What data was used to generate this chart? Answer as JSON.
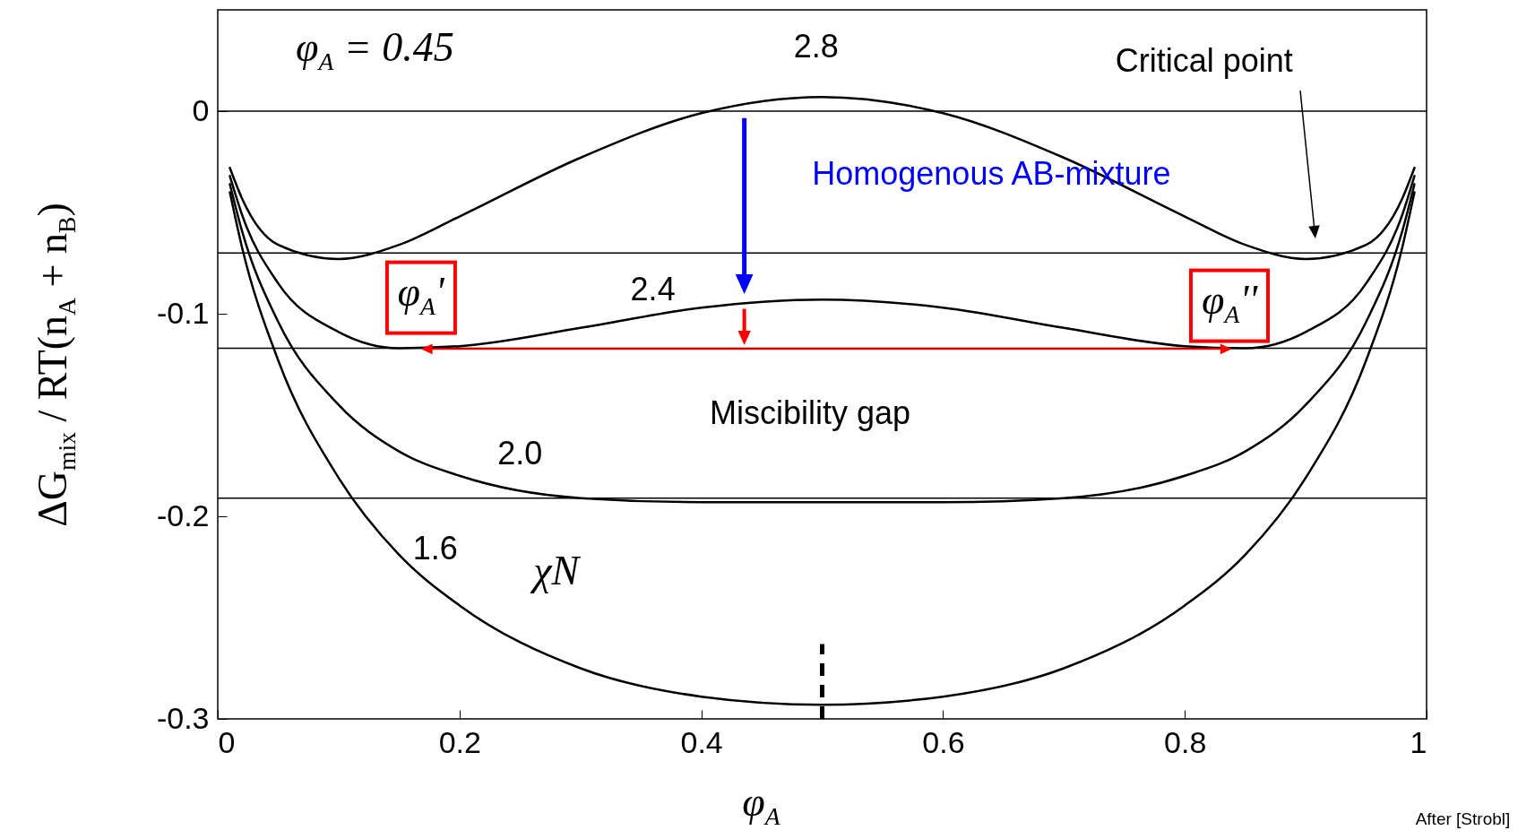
{
  "chart_data": {
    "type": "line",
    "xlabel": "φ$_{A}$",
    "ylabel": "ΔG$_{mix}$ / RT(n$_{A}$ + n$_{B}$)",
    "x": [
      0.01,
      0.02,
      0.05,
      0.1,
      0.15,
      0.2,
      0.3,
      0.4,
      0.5,
      0.6,
      0.7,
      0.8,
      0.85,
      0.9,
      0.95,
      0.98,
      0.99
    ],
    "series": [
      {
        "name": "2.8",
        "color": "#000000",
        "values": [
          -0.028,
          -0.043,
          -0.066,
          -0.073,
          -0.066,
          -0.052,
          -0.023,
          -0.001,
          0.007,
          -0.001,
          -0.023,
          -0.052,
          -0.066,
          -0.073,
          -0.066,
          -0.043,
          -0.028
        ]
      },
      {
        "name": "2.4",
        "color": "#000000",
        "values": [
          -0.032,
          -0.051,
          -0.085,
          -0.109,
          -0.117,
          -0.116,
          -0.107,
          -0.097,
          -0.093,
          -0.097,
          -0.107,
          -0.116,
          -0.117,
          -0.109,
          -0.085,
          -0.051,
          -0.032
        ]
      },
      {
        "name": "2.0",
        "color": "#000000",
        "values": [
          -0.036,
          -0.059,
          -0.104,
          -0.145,
          -0.168,
          -0.18,
          -0.191,
          -0.193,
          -0.193,
          -0.193,
          -0.191,
          -0.18,
          -0.168,
          -0.145,
          -0.104,
          -0.059,
          -0.036
        ]
      },
      {
        "name": "1.6",
        "color": "#000000",
        "values": [
          -0.04,
          -0.067,
          -0.123,
          -0.181,
          -0.219,
          -0.244,
          -0.275,
          -0.289,
          -0.293,
          -0.289,
          -0.275,
          -0.244,
          -0.219,
          -0.181,
          -0.123,
          -0.067,
          -0.04
        ]
      }
    ],
    "xlim": [
      0,
      1
    ],
    "ylim": [
      -0.3,
      0.05
    ],
    "xticks": [
      0,
      0.2,
      0.4,
      0.6,
      0.8,
      1
    ],
    "yticks": [
      -0.3,
      -0.2,
      -0.1,
      0
    ],
    "grid": false,
    "line_style": "solid",
    "ref_lines": [
      {
        "axis": "y",
        "value": 0,
        "color": "#000000"
      },
      {
        "axis": "y",
        "value": -0.07,
        "color": "#000000"
      },
      {
        "axis": "y",
        "value": -0.117,
        "color": "#000000"
      },
      {
        "axis": "y",
        "value": -0.191,
        "color": "#000000"
      },
      {
        "axis": "x",
        "value": 0.5,
        "color": "#000000",
        "line_style": "dashed"
      }
    ],
    "annotations": [
      "Critical point",
      "φ$_{A}$ = 0.45",
      "Homogenous AB-mixture",
      "φ$_{A}$'",
      "φ$_{A}$''",
      "Miscibility gap",
      "χN",
      "After [Strobl]"
    ]
  }
}
